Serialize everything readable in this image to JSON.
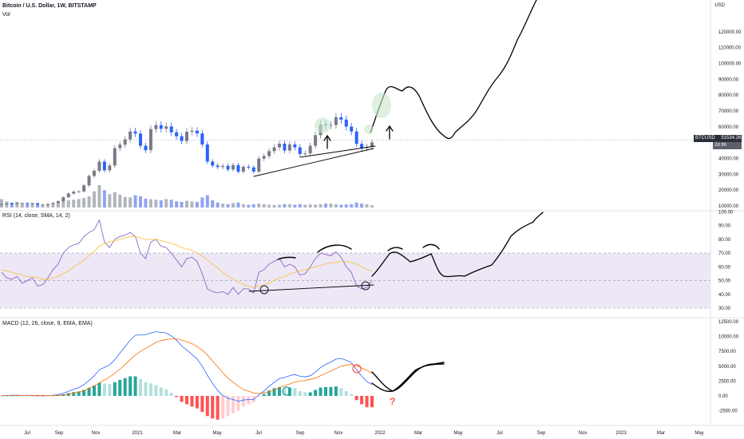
{
  "header": {
    "title": "Bitcoin / U.S. Dollar, 1W, BITSTAMP",
    "vol_label": "Vol",
    "currency": "USD"
  },
  "price_badge": {
    "symbol": "BTCUSD",
    "price": "51534.26",
    "countdown": "2d 9h"
  },
  "rsi_label": "RSI (14, close, SMA, 14, 2)",
  "macd_label": "MACD (12, 26, close, 9, EMA, EMA)",
  "annotation_question": "?",
  "colors": {
    "up": "#787b86",
    "down": "#2962ff",
    "vol_up": "#b2b5be",
    "vol_down": "#90a4f2",
    "rsi_line": "#7e57c2",
    "rsi_ma": "#fbc02d",
    "rsi_band": "#ede7f6",
    "macd_line": "#2962ff",
    "signal": "#ff6d00",
    "hist_up": "#26a69a",
    "hist_up_fade": "#b2dfdb",
    "hist_down": "#ff5252",
    "hist_down_fade": "#ffcdd2",
    "drawing": "#000000"
  },
  "chart_data": [
    {
      "type": "candlestick",
      "title": "Bitcoin / U.S. Dollar, 1W, BITSTAMP",
      "y_axis_ticks": [
        "10000.00",
        "20000.00",
        "30000.00",
        "40000.00",
        "50000.00",
        "60000.00",
        "70000.00",
        "80000.00",
        "90000.00",
        "100000.00",
        "110000.00",
        "120000.00"
      ],
      "x_axis_ticks": [
        "Jul",
        "Sep",
        "Nov",
        "2021",
        "Mar",
        "May",
        "Jul",
        "Sep",
        "Nov",
        "2022",
        "Mar",
        "May",
        "Jul",
        "Sep",
        "Nov",
        "2023",
        "Mar",
        "May"
      ],
      "ylim": [
        10000,
        135000
      ],
      "last_price": 51534.26,
      "weekly_close_sketch": [
        11000,
        11500,
        11300,
        11700,
        11800,
        11400,
        11700,
        10800,
        10900,
        11300,
        11900,
        13000,
        15500,
        17800,
        19000,
        19200,
        23000,
        28900,
        32200,
        38000,
        32500,
        35500,
        46500,
        48700,
        52000,
        57000,
        55700,
        48000,
        45200,
        58500,
        61000,
        58700,
        60200,
        56500,
        54000,
        51000,
        56800,
        57500,
        55800,
        48800,
        38000,
        35500,
        34600,
        35300,
        33000,
        35800,
        31600,
        34700,
        34300,
        31700,
        39900,
        41500,
        44600,
        47000,
        49300,
        45000,
        48800,
        47000,
        42800,
        43200,
        48000,
        54700,
        61500,
        60900,
        61100,
        66000,
        64500,
        60100,
        57000,
        49200,
        46500,
        47300,
        50100
      ],
      "volume_sketch": [
        30,
        22,
        18,
        20,
        14,
        12,
        16,
        10,
        9,
        12,
        14,
        18,
        24,
        26,
        28,
        30,
        34,
        40,
        58,
        80,
        62,
        48,
        55,
        46,
        38,
        36,
        44,
        40,
        32,
        30,
        28,
        26,
        30,
        28,
        22,
        20,
        24,
        22,
        20,
        36,
        44,
        26,
        18,
        14,
        12,
        16,
        18,
        12,
        10,
        12,
        14,
        12,
        10,
        9,
        10,
        12,
        12,
        10,
        12,
        10,
        11,
        10,
        12,
        14,
        14,
        12,
        10,
        11,
        12,
        18,
        14,
        12,
        8
      ]
    },
    {
      "type": "line",
      "title": "RSI (14, close, SMA, 14, 2)",
      "y_axis_ticks": [
        "30.00",
        "40.00",
        "50.00",
        "60.00",
        "70.00",
        "80.00",
        "90.00",
        "100.00"
      ],
      "ylim": [
        25,
        102
      ],
      "band": [
        30,
        70
      ],
      "series": [
        {
          "name": "RSI",
          "values": [
            56,
            52,
            51,
            53,
            48,
            50,
            52,
            46,
            47,
            52,
            58,
            62,
            70,
            74,
            76,
            77,
            82,
            85,
            87,
            94,
            78,
            74,
            80,
            82,
            83,
            85,
            82,
            70,
            66,
            78,
            80,
            75,
            74,
            70,
            65,
            60,
            66,
            67,
            64,
            55,
            44,
            42,
            41,
            42,
            40,
            45,
            40,
            44,
            44,
            41,
            56,
            58,
            62,
            64,
            66,
            60,
            62,
            60,
            54,
            55,
            60,
            66,
            70,
            69,
            68,
            71,
            67,
            60,
            56,
            46,
            44,
            45,
            50
          ]
        },
        {
          "name": "MA",
          "values": [
            58,
            57,
            56,
            55,
            54,
            53,
            53,
            52,
            51,
            51,
            52,
            53,
            55,
            57,
            60,
            62,
            65,
            68,
            71,
            75,
            77,
            78,
            79,
            80,
            81,
            82,
            82,
            81,
            80,
            80,
            80,
            79,
            78,
            77,
            76,
            74,
            73,
            72,
            70,
            68,
            65,
            62,
            59,
            56,
            53,
            51,
            49,
            47,
            46,
            45,
            46,
            47,
            48,
            50,
            52,
            53,
            55,
            56,
            57,
            58,
            59,
            60,
            61,
            62,
            63,
            63,
            64,
            64,
            63,
            62,
            60,
            58,
            57
          ]
        }
      ]
    },
    {
      "type": "bar",
      "title": "MACD (12, 26, close, 9, EMA, EMA)",
      "y_axis_ticks": [
        "-2500.00",
        "0.00",
        "2500.00",
        "5000.00",
        "7500.00",
        "10000.00",
        "12500.00"
      ],
      "ylim": [
        -3600,
        12800
      ],
      "series": [
        {
          "name": "MACD",
          "values": [
            60,
            80,
            90,
            110,
            100,
            90,
            100,
            60,
            40,
            60,
            110,
            220,
            450,
            760,
            1100,
            1400,
            1900,
            2600,
            3400,
            4400,
            4800,
            5200,
            6100,
            7200,
            8300,
            9400,
            10200,
            10300,
            10300,
            10600,
            10800,
            10700,
            10600,
            10100,
            9400,
            8400,
            7700,
            7000,
            6200,
            5000,
            3500,
            2100,
            900,
            100,
            -400,
            -600,
            -900,
            -700,
            -600,
            -600,
            200,
            800,
            1600,
            2300,
            2900,
            3100,
            3400,
            3600,
            3300,
            3200,
            3400,
            4000,
            4800,
            5300,
            5700,
            6200,
            6300,
            6000,
            5600,
            4400,
            3300,
            2400,
            1900
          ]
        },
        {
          "name": "Signal",
          "values": [
            40,
            50,
            60,
            70,
            80,
            80,
            80,
            80,
            70,
            70,
            80,
            100,
            170,
            290,
            450,
            640,
            880,
            1220,
            1650,
            2200,
            2700,
            3200,
            3800,
            4500,
            5300,
            6100,
            6900,
            7500,
            8000,
            8500,
            9000,
            9300,
            9500,
            9600,
            9600,
            9400,
            9100,
            8800,
            8300,
            7700,
            6900,
            5900,
            4900,
            3900,
            3000,
            2300,
            1600,
            1100,
            800,
            500,
            400,
            500,
            700,
            1000,
            1400,
            1700,
            2000,
            2300,
            2500,
            2600,
            2800,
            3000,
            3400,
            3800,
            4200,
            4600,
            5000,
            5200,
            5300,
            5100,
            4700,
            4300,
            3800
          ]
        },
        {
          "name": "Histogram",
          "values": [
            20,
            30,
            30,
            40,
            20,
            10,
            20,
            -20,
            -30,
            -10,
            30,
            120,
            280,
            470,
            650,
            760,
            1020,
            1380,
            1750,
            2200,
            2100,
            2000,
            2300,
            2700,
            3000,
            3300,
            3300,
            2800,
            2300,
            2100,
            1800,
            1400,
            1100,
            500,
            -200,
            -1000,
            -1400,
            -1800,
            -2100,
            -2700,
            -3400,
            -3800,
            -4000,
            -3800,
            -3400,
            -2900,
            -2500,
            -1800,
            -1400,
            -1100,
            -200,
            300,
            900,
            1300,
            1500,
            1400,
            1400,
            1300,
            800,
            600,
            600,
            1000,
            1400,
            1500,
            1500,
            1600,
            1300,
            800,
            300,
            -700,
            -1400,
            -1900,
            -1900
          ]
        }
      ]
    }
  ]
}
